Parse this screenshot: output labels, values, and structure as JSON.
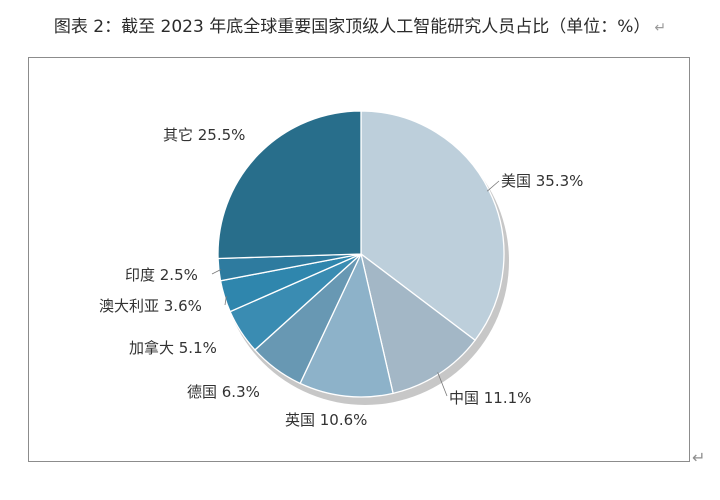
{
  "title": "图表 2：截至 2023 年底全球重要国家顶级人工智能研究人员占比（单位：%）",
  "title_mark": "↵",
  "corner_mark": "↵",
  "chart_data": {
    "type": "pie",
    "title": "图表 2：截至 2023 年底全球重要国家顶级人工智能研究人员占比（单位：%）",
    "unit": "%",
    "slices": [
      {
        "label": "美国",
        "value": 35.3,
        "text": "美国 35.3%",
        "color": "#bdcfdb"
      },
      {
        "label": "中国",
        "value": 11.1,
        "text": "中国 11.1%",
        "color": "#a3b7c6"
      },
      {
        "label": "英国",
        "value": 10.6,
        "text": "英国  10.6%",
        "color": "#8db2c9"
      },
      {
        "label": "德国",
        "value": 6.3,
        "text": "德国 6.3%",
        "color": "#6898b3"
      },
      {
        "label": "加拿大",
        "value": 5.1,
        "text": "加拿大  5.1%",
        "color": "#3a8cb2"
      },
      {
        "label": "澳大利亚",
        "value": 3.6,
        "text": "澳大利亚 3.6%",
        "color": "#2f86ad"
      },
      {
        "label": "印度",
        "value": 2.5,
        "text": "印度 2.5%",
        "color": "#2e7b9f"
      },
      {
        "label": "其它",
        "value": 25.5,
        "text": "其它 25.5%",
        "color": "#286e8b"
      }
    ],
    "legend": "none",
    "data_labels": "outside"
  }
}
